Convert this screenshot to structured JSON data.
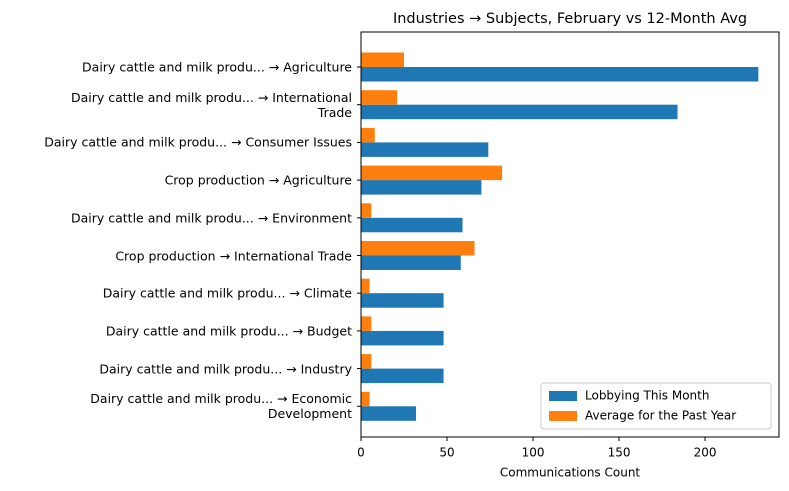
{
  "chart_data": {
    "type": "barh",
    "title": "Industries → Subjects, February vs 12-Month Avg",
    "xlabel": "Communications Count",
    "categories": [
      "Dairy cattle and milk produ... → Agriculture",
      "Dairy cattle and milk produ... → International\nTrade",
      "Dairy cattle and milk produ... → Consumer Issues",
      "Crop production → Agriculture",
      "Dairy cattle and milk produ... → Environment",
      "Crop production → International Trade",
      "Dairy cattle and milk produ... → Climate",
      "Dairy cattle and milk produ... → Budget",
      "Dairy cattle and milk produ... → Industry",
      "Dairy cattle and milk produ... → Economic\nDevelopment"
    ],
    "series": [
      {
        "name": "Lobbying This Month",
        "color": "#1f77b4",
        "values": [
          231,
          184,
          74,
          70,
          59,
          58,
          48,
          48,
          48,
          32
        ]
      },
      {
        "name": "Average for the Past Year",
        "color": "#ff7f0e",
        "values": [
          25,
          21,
          8,
          82,
          6,
          66,
          5,
          6,
          6,
          5
        ]
      }
    ],
    "xlim": [
      0,
      243
    ],
    "xticks": [
      0,
      50,
      100,
      150,
      200
    ],
    "legend": "lower right"
  }
}
